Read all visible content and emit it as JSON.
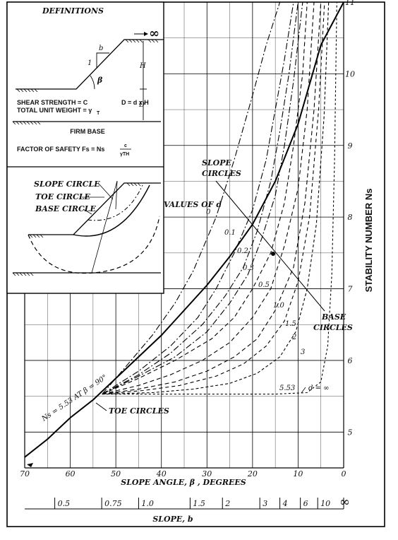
{
  "chart_data": {
    "type": "line",
    "xlabel": "SLOPE ANGLE, β , DEGREES",
    "x2label": "SLOPE, b",
    "ylabel": "STABILITY NUMBER  Ns",
    "xlim": [
      70,
      0
    ],
    "ylim": [
      4.5,
      11
    ],
    "x_reversed": true,
    "x_ticks": [
      "70",
      "60",
      "50",
      "40",
      "30",
      "20",
      "10",
      "0"
    ],
    "y_ticks": [
      "5",
      "6",
      "7",
      "8",
      "9",
      "10",
      "11"
    ],
    "x2_ticks": [
      "0.5",
      "0.75",
      "1.0",
      "1.5",
      "2",
      "3",
      "4",
      "6",
      "10",
      "∞"
    ],
    "x2_tick_angles": [
      63.4,
      53.1,
      45,
      33.7,
      26.6,
      18.4,
      14,
      9.5,
      5.7,
      0
    ],
    "series": [
      {
        "name": "0",
        "kind": "base",
        "x": [
          53,
          48,
          42,
          37,
          33,
          28,
          24,
          20,
          17,
          14
        ],
        "y": [
          5.53,
          5.9,
          6.35,
          6.8,
          7.25,
          8,
          8.8,
          9.7,
          10.4,
          11
        ]
      },
      {
        "name": "0.1",
        "kind": "base",
        "x": [
          53,
          45,
          38,
          32,
          28,
          24,
          20,
          17,
          15,
          13,
          11
        ],
        "y": [
          5.53,
          5.85,
          6.2,
          6.6,
          7,
          7.5,
          8.1,
          8.8,
          9.5,
          10.2,
          11
        ]
      },
      {
        "name": "0.2",
        "kind": "base",
        "x": [
          53,
          45,
          38,
          31,
          26,
          22,
          19,
          16,
          14,
          12,
          10
        ],
        "y": [
          5.53,
          5.8,
          6.1,
          6.5,
          6.9,
          7.3,
          7.8,
          8.5,
          9.2,
          10,
          11
        ]
      },
      {
        "name": "0.3",
        "kind": "base",
        "x": [
          53,
          45,
          37,
          30,
          25,
          21,
          18,
          15,
          13,
          11,
          9
        ],
        "y": [
          5.53,
          5.78,
          6.05,
          6.4,
          6.8,
          7.2,
          7.7,
          8.3,
          9,
          9.9,
          11
        ]
      },
      {
        "name": "0.5",
        "kind": "base",
        "x": [
          53,
          45,
          37,
          29,
          24,
          20,
          16,
          13,
          11,
          9,
          8
        ],
        "y": [
          5.53,
          5.75,
          6,
          6.3,
          6.6,
          7,
          7.5,
          8.2,
          9,
          10,
          11
        ]
      },
      {
        "name": "1.0",
        "kind": "base",
        "x": [
          53,
          45,
          38,
          31,
          25,
          20,
          16,
          13,
          10,
          8,
          6.5
        ],
        "y": [
          5.53,
          5.65,
          5.8,
          6,
          6.25,
          6.6,
          7,
          7.6,
          8.4,
          9.5,
          11
        ]
      },
      {
        "name": "1.5",
        "kind": "base",
        "x": [
          53,
          45,
          37,
          30,
          24,
          19,
          15,
          11,
          8.5,
          6.5,
          5
        ],
        "y": [
          5.53,
          5.6,
          5.7,
          5.85,
          6.05,
          6.3,
          6.7,
          7.3,
          8.2,
          9.5,
          11
        ]
      },
      {
        "name": "2",
        "kind": "base",
        "x": [
          53,
          44,
          36,
          28,
          22,
          17,
          13,
          10,
          7.5,
          5.5,
          4.2
        ],
        "y": [
          5.53,
          5.58,
          5.65,
          5.78,
          5.95,
          6.2,
          6.55,
          7.1,
          8,
          9.5,
          11
        ]
      },
      {
        "name": "3",
        "kind": "base",
        "x": [
          53,
          42,
          33,
          25,
          19,
          14,
          10.5,
          8,
          6,
          4.3,
          3.3
        ],
        "y": [
          5.53,
          5.55,
          5.6,
          5.68,
          5.82,
          6.05,
          6.4,
          7,
          7.9,
          9.4,
          11
        ]
      },
      {
        "name": "d = ∞",
        "kind": "base",
        "x": [
          53,
          30,
          15,
          8,
          5,
          3.5,
          2.6,
          2,
          1.5
        ],
        "y": [
          5.53,
          5.53,
          5.53,
          5.55,
          5.7,
          6.2,
          7.2,
          8.8,
          11
        ]
      },
      {
        "name": "SLOPE CIRCLES",
        "kind": "slope",
        "x": [
          70,
          65,
          60,
          55,
          50,
          45,
          40,
          35,
          30,
          25,
          20,
          15,
          10,
          5,
          0
        ],
        "y": [
          4.65,
          4.9,
          5.2,
          5.45,
          5.75,
          6.05,
          6.35,
          6.7,
          7.05,
          7.45,
          7.9,
          8.5,
          9.3,
          10.4,
          11
        ]
      }
    ],
    "annotations": {
      "values_of_d": "VALUES OF d",
      "slope_circles": [
        "SLOPE",
        "CIRCLES"
      ],
      "base_circles": [
        "BASE",
        "CIRCLES"
      ],
      "toe_circles": "TOE CIRCLES",
      "ns_553": "Ns = 5.53  AT  β = 90°",
      "value_553": "5.53",
      "d_infinity": "d = ∞",
      "base_labels": [
        "0",
        "0.1",
        "0.2",
        "0.3",
        "0.5",
        "1.0",
        "1.5",
        "2",
        "3"
      ]
    },
    "grid": true
  },
  "inset": {
    "definitions_title": "DEFINITIONS",
    "infinity": "∞",
    "b": "b",
    "one": "1",
    "beta": "β",
    "h": "H",
    "d": "D",
    "shear_strength": "SHEAR STRENGTH  = C",
    "total_unit_weight": "TOTAL UNIT WEIGHT = γ",
    "gamma_sub": "T",
    "d_eq": "D = d x H",
    "firm_base": "FIRM BASE",
    "fs_label": "FACTOR OF SAFETY Fs  =  Ns",
    "fs_num": "c",
    "fs_den": "γTH",
    "slope_circle": "SLOPE CIRCLE",
    "toe_circle": "TOE CIRCLE",
    "base_circle": "BASE CIRCLE"
  }
}
